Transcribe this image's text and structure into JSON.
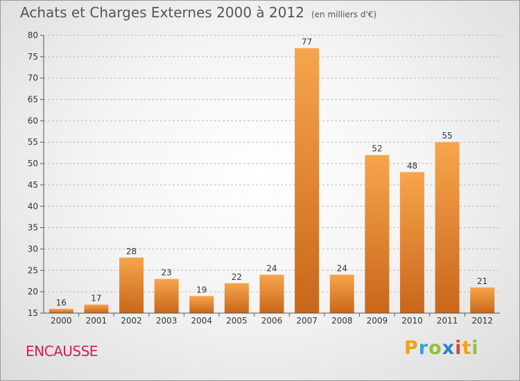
{
  "title": "Achats et Charges Externes 2000 à 2012",
  "subtitle": "(en milliers d'€)",
  "commune": "ENCAUSSE",
  "logo": "Proxiti",
  "colors": {
    "bar_light": "#f7a54d",
    "bar_dark": "#c9661a",
    "axis": "#555555",
    "grid": "#bdbdbd",
    "commune": "#d2204e"
  },
  "chart_data": {
    "type": "bar",
    "title": "Achats et Charges Externes 2000 à 2012",
    "subtitle": "(en milliers d'€)",
    "categories": [
      "2000",
      "2001",
      "2002",
      "2003",
      "2004",
      "2005",
      "2006",
      "2007",
      "2008",
      "2009",
      "2010",
      "2011",
      "2012"
    ],
    "values": [
      16,
      17,
      28,
      23,
      19,
      22,
      24,
      77,
      24,
      52,
      48,
      55,
      21
    ],
    "ylim": [
      15,
      80
    ],
    "yticks": [
      15,
      20,
      25,
      30,
      35,
      40,
      45,
      50,
      55,
      60,
      65,
      70,
      75,
      80
    ],
    "grid": "horizontal dashed",
    "xlabel": "",
    "ylabel": ""
  }
}
